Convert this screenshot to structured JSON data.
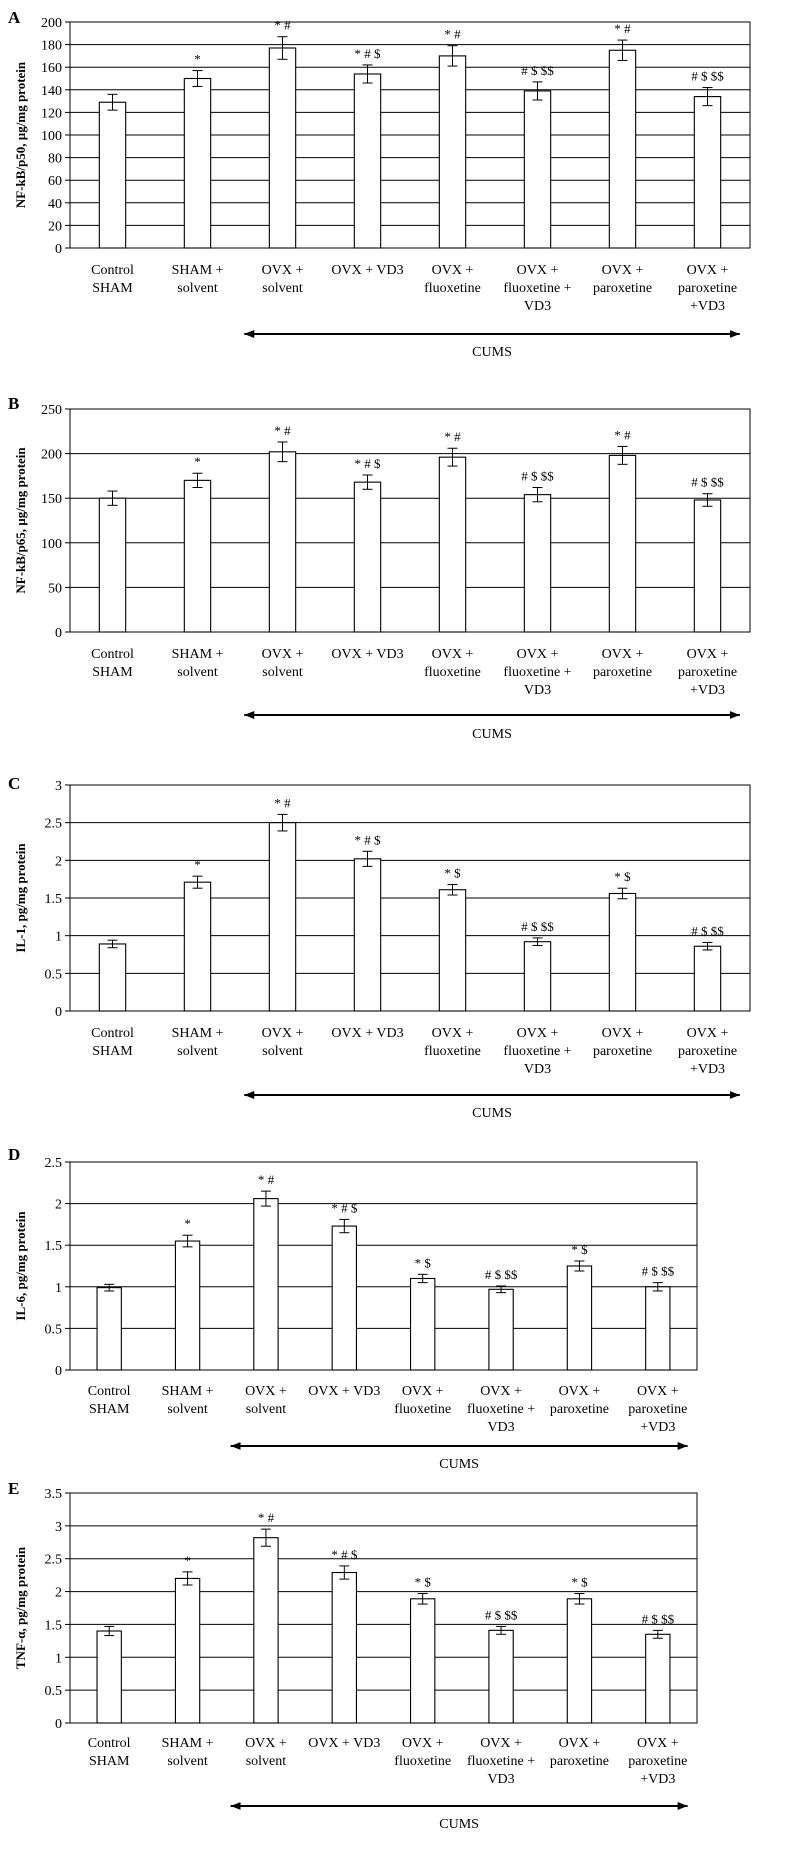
{
  "figure": {
    "categories": [
      [
        "Control",
        "SHAM"
      ],
      [
        "SHAM +",
        "solvent"
      ],
      [
        "OVX +",
        "solvent"
      ],
      [
        "OVX + VD3"
      ],
      [
        "OVX +",
        "fluoxetine"
      ],
      [
        "OVX +",
        "fluoxetine +",
        "VD3"
      ],
      [
        "OVX +",
        "paroxetine"
      ],
      [
        "OVX +",
        "paroxetine",
        "+VD3"
      ]
    ],
    "bracket_label": "CUMS",
    "bracket_span": [
      2,
      7
    ]
  },
  "chart_data": [
    {
      "type": "bar",
      "panel": "A",
      "ylabel": "NF-kB/p50, µg/mg protein",
      "ylim": [
        0,
        200
      ],
      "yticks": [
        "0",
        "20",
        "40",
        "60",
        "80",
        "100",
        "120",
        "140",
        "160",
        "180",
        "200"
      ],
      "values": [
        129,
        150,
        177,
        154,
        170,
        139,
        175,
        134
      ],
      "errors": [
        7,
        7,
        10,
        8,
        9,
        8,
        9,
        8
      ],
      "annotations": [
        "",
        "*",
        "* #",
        "* # $",
        "* #",
        "# $ $$",
        "* #",
        "# $ $$"
      ]
    },
    {
      "type": "bar",
      "panel": "B",
      "ylabel": "NF-kB/p65, µg/mg protein",
      "ylim": [
        0,
        250
      ],
      "yticks": [
        "0",
        "50",
        "100",
        "150",
        "200",
        "250"
      ],
      "values": [
        150,
        170,
        202,
        168,
        196,
        154,
        198,
        148
      ],
      "errors": [
        8,
        8,
        11,
        8,
        10,
        8,
        10,
        7
      ],
      "annotations": [
        "",
        "*",
        "* #",
        "* # $",
        "* #",
        "# $ $$",
        "* #",
        "# $ $$"
      ]
    },
    {
      "type": "bar",
      "panel": "C",
      "ylabel": "IL-1, pg/mg protein",
      "ylim": [
        0,
        3
      ],
      "yticks": [
        "0",
        "0.5",
        "1",
        "1.5",
        "2",
        "2.5",
        "3"
      ],
      "values": [
        0.89,
        1.71,
        2.5,
        2.02,
        1.61,
        0.92,
        1.56,
        0.86
      ],
      "errors": [
        0.05,
        0.08,
        0.11,
        0.1,
        0.07,
        0.05,
        0.07,
        0.05
      ],
      "annotations": [
        "",
        "*",
        "* #",
        "* # $",
        "* $",
        "# $ $$",
        "* $",
        "# $ $$"
      ]
    },
    {
      "type": "bar",
      "panel": "D",
      "ylabel": "IL-6, pg/mg protein",
      "ylim": [
        0,
        2.5
      ],
      "yticks": [
        "0",
        "0.5",
        "1",
        "1.5",
        "2",
        "2.5"
      ],
      "values": [
        0.99,
        1.55,
        2.06,
        1.73,
        1.1,
        0.97,
        1.25,
        1.0
      ],
      "errors": [
        0.04,
        0.07,
        0.09,
        0.08,
        0.05,
        0.04,
        0.06,
        0.05
      ],
      "annotations": [
        "",
        "*",
        "* #",
        "* # $",
        "* $",
        "# $ $$",
        "* $",
        "# $ $$"
      ]
    },
    {
      "type": "bar",
      "panel": "E",
      "ylabel": "TNF-α, pg/mg protein",
      "ylim": [
        0,
        3.5
      ],
      "yticks": [
        "0",
        "0.5",
        "1",
        "1.5",
        "2",
        "2.5",
        "3",
        "3.5"
      ],
      "values": [
        1.4,
        2.2,
        2.82,
        2.29,
        1.89,
        1.41,
        1.89,
        1.35
      ],
      "errors": [
        0.07,
        0.1,
        0.13,
        0.1,
        0.08,
        0.06,
        0.08,
        0.06
      ],
      "annotations": [
        "",
        "*",
        "* #",
        "* # $",
        "* $",
        "# $ $$",
        "* $",
        "# $ $$"
      ]
    }
  ]
}
